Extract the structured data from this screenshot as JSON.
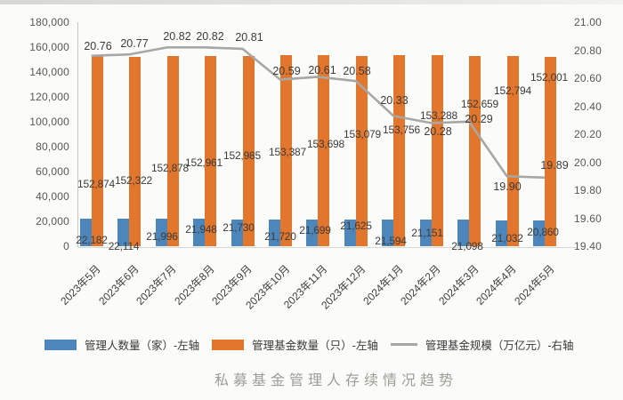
{
  "caption": "私募基金管理人存续情况趋势",
  "chart_data": {
    "type": "bar+line",
    "categories": [
      "2023年5月",
      "2023年6月",
      "2023年7月",
      "2023年8月",
      "2023年9月",
      "2023年10月",
      "2023年11月",
      "2023年12月",
      "2024年1月",
      "2024年2月",
      "2024年3月",
      "2024年4月",
      "2024年5月"
    ],
    "series": [
      {
        "name": "管理人数量（家）-左轴",
        "type": "bar",
        "axis": "left",
        "color": "#4d86bb",
        "values": [
          22182,
          22114,
          21996,
          21948,
          21730,
          21720,
          21699,
          21625,
          21594,
          21151,
          21098,
          21032,
          20860
        ]
      },
      {
        "name": "管理基金数量（只）-左轴",
        "type": "bar",
        "axis": "left",
        "color": "#e2762c",
        "values": [
          152874,
          152322,
          152878,
          152961,
          152985,
          153387,
          153698,
          153079,
          153756,
          153288,
          152659,
          152794,
          152001
        ]
      },
      {
        "name": "管理基金规模（万亿元）-右轴",
        "type": "line",
        "axis": "right",
        "color": "#a7a7a5",
        "values": [
          20.76,
          20.77,
          20.82,
          20.82,
          20.81,
          20.59,
          20.61,
          20.58,
          20.33,
          20.28,
          20.29,
          19.9,
          19.89
        ]
      }
    ],
    "axis_left": {
      "min": 0,
      "max": 180000,
      "tick_step": 20000,
      "ticks": [
        "180,000",
        "160,000",
        "140,000",
        "120,000",
        "100,000",
        "80,000",
        "60,000",
        "40,000",
        "20,000",
        "0"
      ]
    },
    "axis_right": {
      "min": 19.4,
      "max": 21.0,
      "tick_step": 0.2,
      "ticks": [
        "21.00",
        "20.80",
        "20.60",
        "20.40",
        "20.20",
        "20.00",
        "19.80",
        "19.60",
        "19.40"
      ]
    },
    "legend_position": "bottom",
    "gridlines": false
  }
}
